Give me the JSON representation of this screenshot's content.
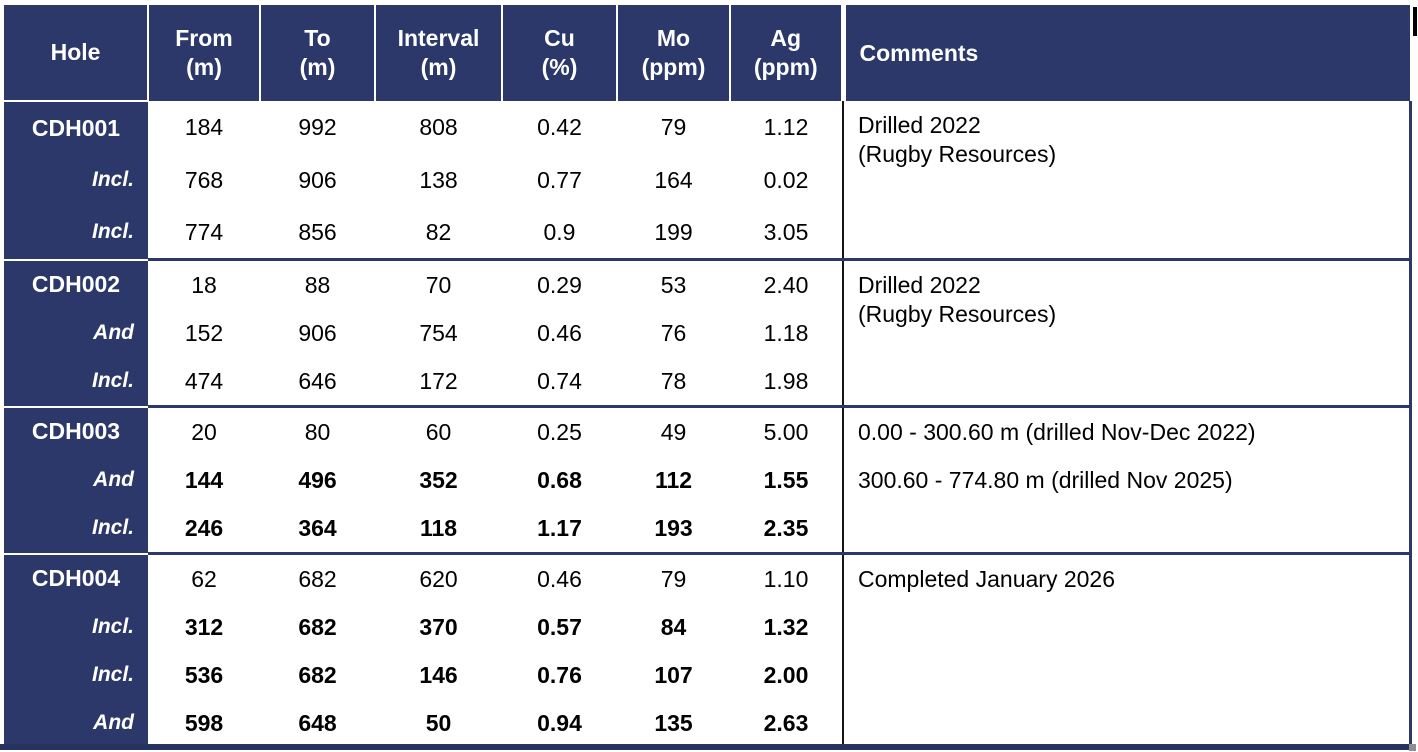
{
  "colors": {
    "navy": "#2b3869",
    "header_text": "#ffffff",
    "body_text": "#000000",
    "comments_divider": "#151515"
  },
  "table": {
    "columns": [
      {
        "key": "hole",
        "line1": "Hole",
        "line2": ""
      },
      {
        "key": "from",
        "line1": "From",
        "line2": "(m)"
      },
      {
        "key": "to",
        "line1": "To",
        "line2": "(m)"
      },
      {
        "key": "interval",
        "line1": "Interval",
        "line2": "(m)"
      },
      {
        "key": "cu",
        "line1": "Cu",
        "line2": "(%)"
      },
      {
        "key": "mo",
        "line1": "Mo",
        "line2": "(ppm)"
      },
      {
        "key": "ag",
        "line1": "Ag",
        "line2": "(ppm)"
      },
      {
        "key": "comments",
        "line1": "Comments",
        "line2": ""
      }
    ],
    "groups": [
      {
        "comment_lines": [
          "Drilled 2022",
          "(Rugby Resources)"
        ],
        "comment_spaced": false,
        "rows": [
          {
            "label": "CDH001",
            "bold": false,
            "from": "184",
            "to": "992",
            "interval": "808",
            "cu": "0.42",
            "mo": "79",
            "ag": "1.12"
          },
          {
            "label": "Incl.",
            "bold": false,
            "from": "768",
            "to": "906",
            "interval": "138",
            "cu": "0.77",
            "mo": "164",
            "ag": "0.02"
          },
          {
            "label": "Incl.",
            "bold": false,
            "from": "774",
            "to": "856",
            "interval": "82",
            "cu": "0.9",
            "mo": "199",
            "ag": "3.05"
          }
        ]
      },
      {
        "comment_lines": [
          "Drilled 2022",
          "(Rugby Resources)"
        ],
        "comment_spaced": false,
        "rows": [
          {
            "label": "CDH002",
            "bold": false,
            "from": "18",
            "to": "88",
            "interval": "70",
            "cu": "0.29",
            "mo": "53",
            "ag": "2.40"
          },
          {
            "label": "And",
            "bold": false,
            "from": "152",
            "to": "906",
            "interval": "754",
            "cu": "0.46",
            "mo": "76",
            "ag": "1.18"
          },
          {
            "label": "Incl.",
            "bold": false,
            "from": "474",
            "to": "646",
            "interval": "172",
            "cu": "0.74",
            "mo": "78",
            "ag": "1.98"
          }
        ]
      },
      {
        "comment_lines": [
          "0.00 - 300.60 m (drilled Nov-Dec 2022)",
          "300.60 - 774.80 m (drilled Nov 2025)"
        ],
        "comment_spaced": true,
        "rows": [
          {
            "label": "CDH003",
            "bold": false,
            "from": "20",
            "to": "80",
            "interval": "60",
            "cu": "0.25",
            "mo": "49",
            "ag": "5.00"
          },
          {
            "label": "And",
            "bold": true,
            "from": "144",
            "to": "496",
            "interval": "352",
            "cu": "0.68",
            "mo": "112",
            "ag": "1.55"
          },
          {
            "label": "Incl.",
            "bold": true,
            "from": "246",
            "to": "364",
            "interval": "118",
            "cu": "1.17",
            "mo": "193",
            "ag": "2.35"
          }
        ]
      },
      {
        "comment_lines": [
          "Completed January 2026"
        ],
        "comment_spaced": false,
        "rows": [
          {
            "label": "CDH004",
            "bold": false,
            "from": "62",
            "to": "682",
            "interval": "620",
            "cu": "0.46",
            "mo": "79",
            "ag": "1.10"
          },
          {
            "label": "Incl.",
            "bold": true,
            "from": "312",
            "to": "682",
            "interval": "370",
            "cu": "0.57",
            "mo": "84",
            "ag": "1.32"
          },
          {
            "label": "Incl.",
            "bold": true,
            "from": "536",
            "to": "682",
            "interval": "146",
            "cu": "0.76",
            "mo": "107",
            "ag": "2.00"
          },
          {
            "label": "And",
            "bold": true,
            "from": "598",
            "to": "648",
            "interval": "50",
            "cu": "0.94",
            "mo": "135",
            "ag": "2.63"
          }
        ]
      }
    ]
  }
}
